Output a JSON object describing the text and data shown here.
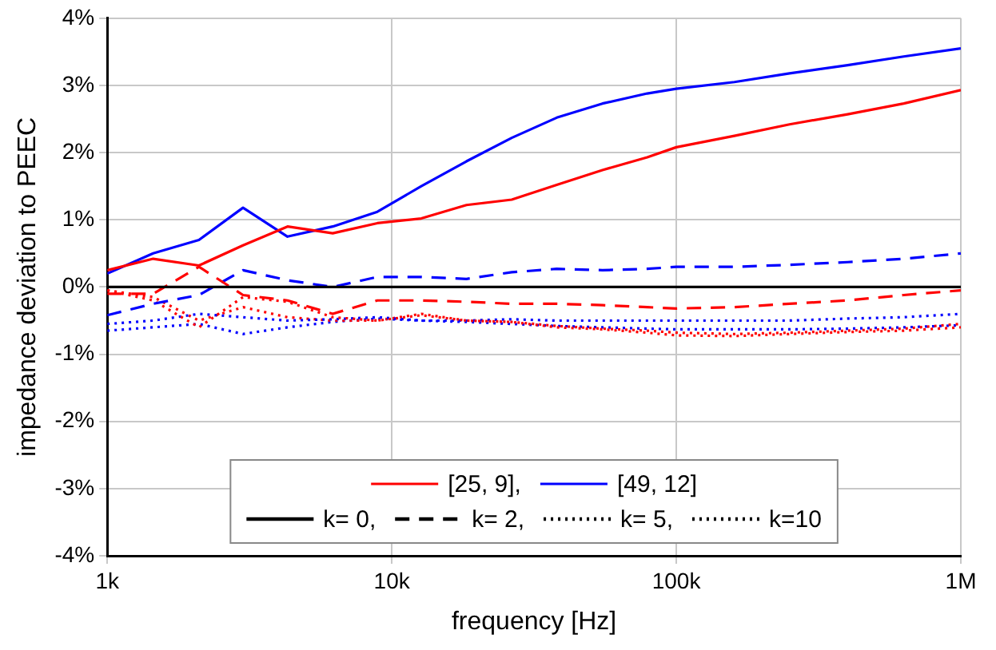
{
  "chart_data": {
    "type": "line",
    "xlabel": "frequency [Hz]",
    "ylabel": "impedance deviation to PEEC",
    "log": "x",
    "x": [
      1000,
      1450,
      2100,
      3000,
      4300,
      6200,
      8900,
      12700,
      18300,
      26400,
      38000,
      55000,
      79000,
      100000,
      160000,
      250000,
      400000,
      630000,
      1000000
    ],
    "xlim": [
      1000,
      1000000
    ],
    "xticks": [
      {
        "value": 1000,
        "label": "1k"
      },
      {
        "value": 10000,
        "label": "10k"
      },
      {
        "value": 100000,
        "label": "100k"
      },
      {
        "value": 1000000,
        "label": "1M"
      }
    ],
    "ylim": [
      -4,
      4
    ],
    "yticks": [
      {
        "value": -4,
        "label": "-4%"
      },
      {
        "value": -3,
        "label": "-3%"
      },
      {
        "value": -2,
        "label": "-2%"
      },
      {
        "value": -1,
        "label": "-1%"
      },
      {
        "value": 0,
        "label": "0%"
      },
      {
        "value": 1,
        "label": "1%"
      },
      {
        "value": 2,
        "label": "2%"
      },
      {
        "value": 3,
        "label": "3%"
      },
      {
        "value": 4,
        "label": "4%"
      }
    ],
    "grid": true,
    "legend": "bottom",
    "series": [
      {
        "name": "[25, 9],",
        "color": "#ff0000",
        "line_style": "solid",
        "values": [
          0.25,
          0.42,
          0.32,
          0.62,
          0.9,
          0.8,
          0.95,
          1.02,
          1.22,
          1.3,
          1.52,
          1.74,
          1.93,
          2.08,
          2.25,
          2.42,
          2.57,
          2.73,
          2.93
        ]
      },
      {
        "name": "[49, 12]",
        "color": "#0000ff",
        "line_style": "solid",
        "values": [
          0.2,
          0.5,
          0.7,
          1.18,
          0.75,
          0.9,
          1.12,
          1.5,
          1.87,
          2.22,
          2.52,
          2.73,
          2.88,
          2.95,
          3.05,
          3.18,
          3.3,
          3.43,
          3.55
        ]
      },
      {
        "name": "k= 0,",
        "color": "#000000",
        "line_style": "solid",
        "values": [
          0,
          0,
          0,
          0,
          0,
          0,
          0,
          0,
          0,
          0,
          0,
          0,
          0,
          0,
          0,
          0,
          0,
          0,
          0
        ]
      },
      {
        "name": "k= 2,",
        "color": "#000000",
        "line_style": "dashed",
        "values": [
          null,
          null,
          null,
          null,
          null,
          null,
          null,
          null,
          null,
          null,
          null,
          null,
          null,
          null,
          null,
          null,
          null,
          null,
          null
        ]
      },
      {
        "name": "k= 5,",
        "color": "#000000",
        "line_style": "dotted",
        "values": [
          null,
          null,
          null,
          null,
          null,
          null,
          null,
          null,
          null,
          null,
          null,
          null,
          null,
          null,
          null,
          null,
          null,
          null,
          null
        ]
      },
      {
        "name": "k=10",
        "color": "#000000",
        "line_style": "dotted",
        "values": [
          null,
          null,
          null,
          null,
          null,
          null,
          null,
          null,
          null,
          null,
          null,
          null,
          null,
          null,
          null,
          null,
          null,
          null,
          null
        ]
      },
      {
        "color": "#ff0000",
        "line_style": "dashed",
        "values": [
          -0.1,
          -0.1,
          0.3,
          -0.12,
          -0.2,
          -0.4,
          -0.2,
          -0.2,
          -0.22,
          -0.25,
          -0.25,
          -0.27,
          -0.3,
          -0.32,
          -0.3,
          -0.25,
          -0.2,
          -0.12,
          -0.05
        ]
      },
      {
        "color": "#0000ff",
        "line_style": "dashed",
        "values": [
          -0.42,
          -0.25,
          -0.12,
          0.25,
          0.1,
          0.0,
          0.15,
          0.15,
          0.12,
          0.22,
          0.27,
          0.25,
          0.27,
          0.3,
          0.3,
          0.33,
          0.37,
          0.42,
          0.5
        ]
      },
      {
        "color": "#ff0000",
        "line_style": "dotted",
        "values": [
          -0.05,
          -0.2,
          -0.6,
          -0.15,
          -0.22,
          -0.45,
          -0.5,
          -0.42,
          -0.5,
          -0.52,
          -0.58,
          -0.62,
          -0.65,
          -0.68,
          -0.7,
          -0.68,
          -0.65,
          -0.62,
          -0.55
        ]
      },
      {
        "color": "#0000ff",
        "line_style": "dotted",
        "values": [
          -0.55,
          -0.5,
          -0.4,
          -0.45,
          -0.5,
          -0.48,
          -0.45,
          -0.5,
          -0.5,
          -0.48,
          -0.5,
          -0.5,
          -0.5,
          -0.5,
          -0.5,
          -0.5,
          -0.47,
          -0.45,
          -0.4
        ]
      },
      {
        "color": "#ff0000",
        "line_style": "dotted",
        "values": [
          -0.05,
          -0.15,
          -0.5,
          -0.3,
          -0.45,
          -0.5,
          -0.5,
          -0.4,
          -0.5,
          -0.52,
          -0.6,
          -0.63,
          -0.68,
          -0.72,
          -0.73,
          -0.7,
          -0.67,
          -0.65,
          -0.6
        ]
      },
      {
        "color": "#0000ff",
        "line_style": "dotted",
        "values": [
          -0.65,
          -0.6,
          -0.55,
          -0.7,
          -0.6,
          -0.52,
          -0.47,
          -0.5,
          -0.52,
          -0.55,
          -0.58,
          -0.6,
          -0.62,
          -0.63,
          -0.63,
          -0.63,
          -0.62,
          -0.6,
          -0.57
        ]
      }
    ]
  }
}
